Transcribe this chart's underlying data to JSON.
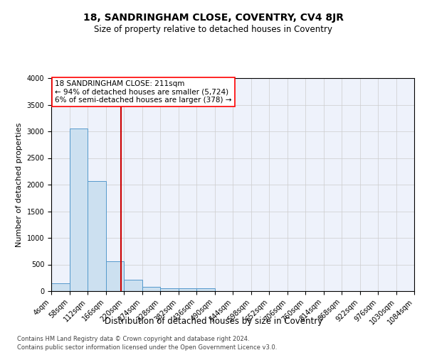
{
  "title": "18, SANDRINGHAM CLOSE, COVENTRY, CV4 8JR",
  "subtitle": "Size of property relative to detached houses in Coventry",
  "xlabel": "Distribution of detached houses by size in Coventry",
  "ylabel": "Number of detached properties",
  "annotation_line1": "18 SANDRINGHAM CLOSE: 211sqm",
  "annotation_line2": "← 94% of detached houses are smaller (5,724)",
  "annotation_line3": "6% of semi-detached houses are larger (378) →",
  "footer_line1": "Contains HM Land Registry data © Crown copyright and database right 2024.",
  "footer_line2": "Contains public sector information licensed under the Open Government Licence v3.0.",
  "property_size": 211,
  "bin_edges": [
    4,
    58,
    112,
    166,
    220,
    274,
    328,
    382,
    436,
    490,
    544,
    598,
    652,
    706,
    760,
    814,
    868,
    922,
    976,
    1030,
    1084
  ],
  "bin_counts": [
    150,
    3050,
    2070,
    560,
    215,
    80,
    55,
    50,
    55,
    0,
    0,
    0,
    0,
    0,
    0,
    0,
    0,
    0,
    0,
    0
  ],
  "bar_facecolor": "#cce0f0",
  "bar_edgecolor": "#5599cc",
  "vline_color": "#cc0000",
  "grid_color": "#cccccc",
  "background_color": "#eef2fb",
  "ylim": [
    0,
    4000
  ],
  "yticks": [
    0,
    500,
    1000,
    1500,
    2000,
    2500,
    3000,
    3500,
    4000
  ],
  "title_fontsize": 10,
  "subtitle_fontsize": 8.5,
  "ylabel_fontsize": 8,
  "xlabel_fontsize": 8.5,
  "tick_fontsize": 7,
  "annotation_fontsize": 7.5,
  "footer_fontsize": 6
}
